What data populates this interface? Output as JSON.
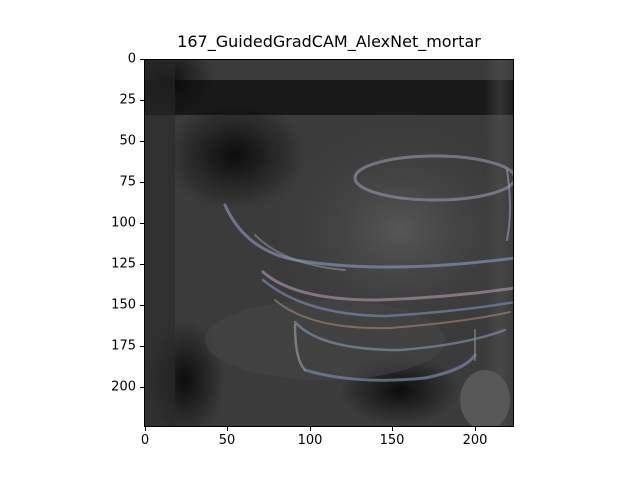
{
  "figure": {
    "title": "167_GuidedGradCAM_AlexNet_mortar",
    "image_description_icon": "guided-gradcam-mortar-image",
    "x_ticks": [
      "0",
      "50",
      "100",
      "150",
      "200"
    ],
    "y_ticks": [
      "0",
      "25",
      "50",
      "75",
      "100",
      "125",
      "150",
      "175",
      "200"
    ],
    "x_range": [
      0,
      224
    ],
    "y_range": [
      0,
      224
    ]
  }
}
